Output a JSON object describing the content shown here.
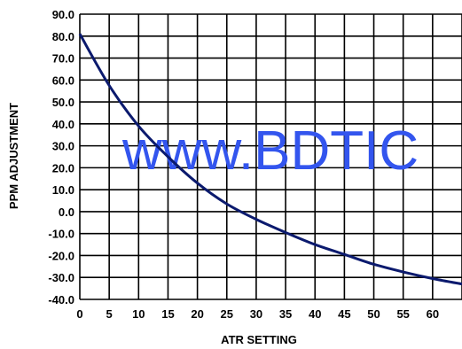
{
  "chart_data": {
    "type": "line",
    "title": "",
    "xlabel": "ATR SETTING",
    "ylabel": "PPM ADJUSTMENT",
    "xlim": [
      0,
      65
    ],
    "ylim": [
      -40,
      90
    ],
    "grid": true,
    "x_ticks": [
      "0",
      "5",
      "10",
      "15",
      "20",
      "25",
      "30",
      "35",
      "40",
      "45",
      "50",
      "55",
      "60"
    ],
    "y_ticks": [
      "90.0",
      "80.0",
      "70.0",
      "60.0",
      "50.0",
      "40.0",
      "30.0",
      "20.0",
      "10.0",
      "0.0",
      "-10.0",
      "-20.0",
      "-30.0",
      "-40.0"
    ],
    "series": [
      {
        "color": "#0b1a6e",
        "x": [
          0,
          5,
          10,
          15,
          20,
          25,
          30,
          35,
          40,
          45,
          50,
          55,
          60,
          65
        ],
        "y": [
          81,
          57.5,
          39,
          25,
          13,
          3.5,
          -3.5,
          -9.5,
          -15,
          -19.5,
          -24,
          -27.5,
          -30.5,
          -33
        ]
      }
    ],
    "watermark": {
      "text": "www.BDTIC",
      "color": "#3355ee"
    }
  }
}
